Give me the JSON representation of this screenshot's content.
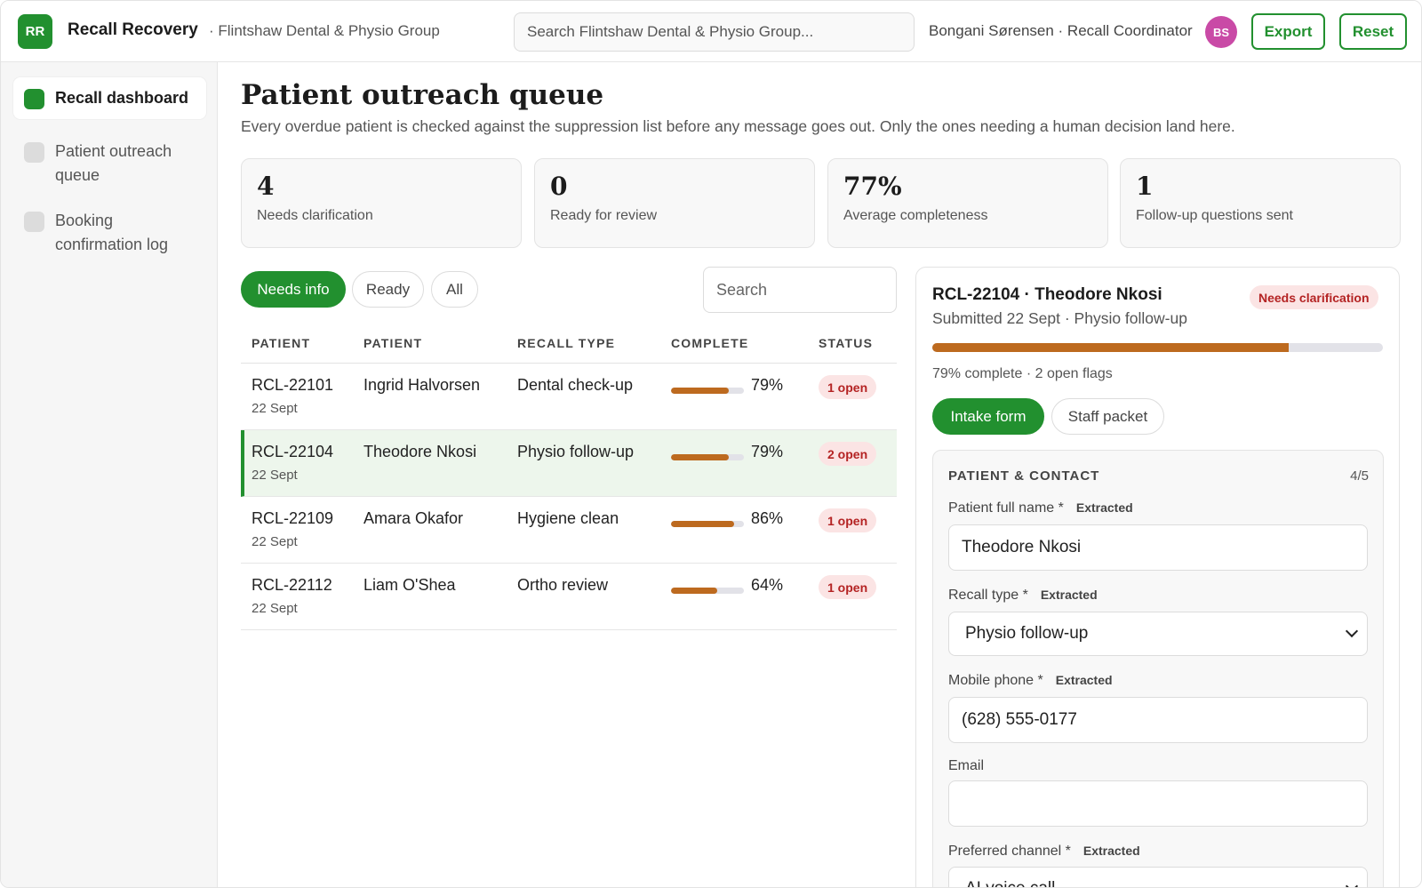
{
  "header": {
    "logo": "RR",
    "app_name": "Recall Recovery",
    "org": "· Flintshaw Dental & Physio Group",
    "search_placeholder": "Search Flintshaw Dental & Physio Group...",
    "user": "Bongani Sørensen · Recall Coordinator",
    "avatar": "BS",
    "export_label": "Export",
    "reset_label": "Reset"
  },
  "sidebar": {
    "items": [
      {
        "label": "Recall dashboard",
        "active": true
      },
      {
        "label": "Patient outreach queue",
        "active": false
      },
      {
        "label": "Booking confirmation log",
        "active": false
      }
    ]
  },
  "main": {
    "title": "Patient outreach queue",
    "subtitle": "Every overdue patient is checked against the suppression list before any message goes out. Only the ones needing a human decision land here.",
    "stats": [
      {
        "value": "4",
        "label": "Needs clarification"
      },
      {
        "value": "0",
        "label": "Ready for review"
      },
      {
        "value": "77%",
        "label": "Average completeness"
      },
      {
        "value": "1",
        "label": "Follow-up questions sent"
      }
    ],
    "filters": [
      {
        "label": "Needs info",
        "active": true
      },
      {
        "label": "Ready",
        "active": false
      },
      {
        "label": "All",
        "active": false
      }
    ],
    "search_placeholder": "Search"
  },
  "table": {
    "headers": [
      "PATIENT",
      "PATIENT",
      "RECALL TYPE",
      "COMPLETE",
      "STATUS"
    ],
    "rows": [
      {
        "id": "RCL-22101",
        "date": "22 Sept",
        "name": "Ingrid Halvorsen",
        "type": "Dental check-up",
        "complete": 79,
        "complete_label": "79%",
        "status": "1 open",
        "selected": false
      },
      {
        "id": "RCL-22104",
        "date": "22 Sept",
        "name": "Theodore Nkosi",
        "type": "Physio follow-up",
        "complete": 79,
        "complete_label": "79%",
        "status": "2 open",
        "selected": true
      },
      {
        "id": "RCL-22109",
        "date": "22 Sept",
        "name": "Amara Okafor",
        "type": "Hygiene clean",
        "complete": 86,
        "complete_label": "86%",
        "status": "1 open",
        "selected": false
      },
      {
        "id": "RCL-22112",
        "date": "22 Sept",
        "name": "Liam O'Shea",
        "type": "Ortho review",
        "complete": 64,
        "complete_label": "64%",
        "status": "1 open",
        "selected": false
      }
    ]
  },
  "detail": {
    "title": "RCL-22104 · Theodore Nkosi",
    "badge": "Needs clarification",
    "subtitle": "Submitted 22 Sept · Physio follow-up",
    "progress": 79,
    "meta": "79% complete · 2 open flags",
    "tabs": [
      {
        "label": "Intake form",
        "active": true
      },
      {
        "label": "Staff packet",
        "active": false
      }
    ],
    "section": {
      "title": "PATIENT & CONTACT",
      "count": "4/5",
      "fields": [
        {
          "label": "Patient full name *",
          "tag": "Extracted",
          "value": "Theodore Nkosi",
          "kind": "input"
        },
        {
          "label": "Recall type *",
          "tag": "Extracted",
          "value": "Physio follow-up",
          "kind": "select"
        },
        {
          "label": "Mobile phone *",
          "tag": "Extracted",
          "value": "(628) 555-0177",
          "kind": "input"
        },
        {
          "label": "Email",
          "tag": "",
          "value": "",
          "kind": "input"
        },
        {
          "label": "Preferred channel *",
          "tag": "Extracted",
          "value": "AI voice call",
          "kind": "select"
        }
      ]
    }
  },
  "colors": {
    "accent": "#22902f",
    "progress": "#bd6a1f",
    "flag_bg": "#fbe4e4",
    "flag_text": "#b42323",
    "avatar": "#c94aa6"
  }
}
